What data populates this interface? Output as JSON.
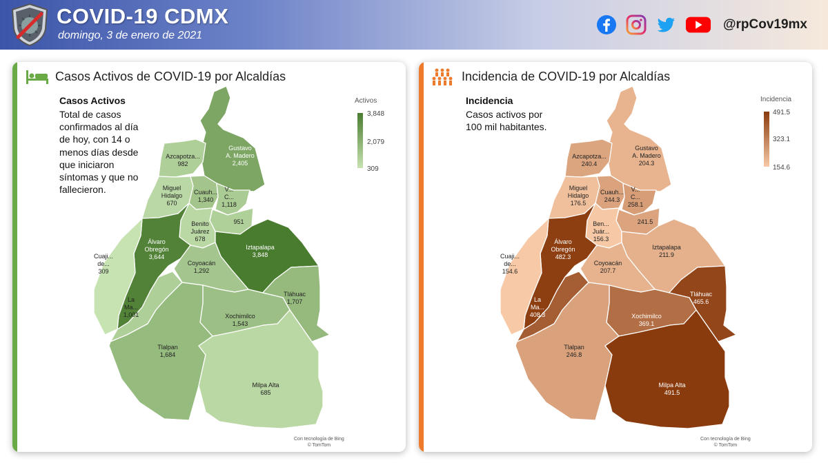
{
  "header": {
    "title": "COVID-19 CDMX",
    "date": "domingo, 3 de enero de 2021",
    "handle": "@rpCov19mx",
    "icons": [
      "facebook-icon",
      "instagram-icon",
      "twitter-icon",
      "youtube-icon"
    ]
  },
  "left_panel": {
    "accent": "#6aaa46",
    "title": "Casos Activos de COVID-19 por Alcaldías",
    "desc_head": "Casos Activos",
    "desc_lines": [
      "Total de casos",
      "confirmados al día",
      "de hoy, con 14 o",
      "menos días desde",
      "que iniciaron",
      "síntomas y que no",
      "fallecieron."
    ],
    "legend": {
      "title": "Activos",
      "max": "3,848",
      "mid": "2,079",
      "min": "309",
      "color_max": "#4a7c2f",
      "color_min": "#c7e3b2"
    },
    "credit": [
      "Con tecnología de Bing",
      "© TomTom"
    ]
  },
  "right_panel": {
    "accent": "#ee7a2e",
    "title": "Incidencia de COVID-19 por Alcaldías",
    "desc_head": "Incidencia",
    "desc_lines": [
      "Casos activos por",
      "100 mil habitantes."
    ],
    "legend": {
      "title": "Incidencia",
      "max": "491.5",
      "mid": "323.1",
      "min": "154.6",
      "color_max": "#8a3b0d",
      "color_min": "#f7c9a6"
    },
    "credit": [
      "Con tecnología de Bing",
      "© TomTom"
    ]
  },
  "map_data": {
    "regions": [
      {
        "key": "gam",
        "label_lines": [
          "Gustavo",
          "A. Madero"
        ],
        "active": "2,405",
        "active_value": 2405,
        "incidence": "204.3",
        "incidence_value": 204.3
      },
      {
        "key": "azc",
        "label_lines": [
          "Azcapotza..."
        ],
        "active": "982",
        "active_value": 982,
        "incidence": "240.4",
        "incidence_value": 240.4
      },
      {
        "key": "mh",
        "label_lines": [
          "Miguel",
          "Hidalgo"
        ],
        "active": "670",
        "active_value": 670,
        "incidence": "176.5",
        "incidence_value": 176.5
      },
      {
        "key": "cuauh",
        "label_lines": [
          "Cuauh..."
        ],
        "active": "1,340",
        "active_value": 1340,
        "incidence": "244.3",
        "incidence_value": 244.3
      },
      {
        "key": "vc",
        "label_lines": [
          "V...",
          "C..."
        ],
        "active": "1,118",
        "active_value": 1118,
        "incidence": "258.1",
        "incidence_value": 258.1
      },
      {
        "key": "izc",
        "label_lines": [],
        "active": "951",
        "active_value": 951,
        "incidence": "241.5",
        "incidence_value": 241.5
      },
      {
        "key": "bj",
        "label_lines": [
          "Benito",
          "Juárez"
        ],
        "right_label_lines": [
          "Ben...",
          "Juár..."
        ],
        "active": "678",
        "active_value": 678,
        "incidence": "156.3",
        "incidence_value": 156.3
      },
      {
        "key": "ao",
        "label_lines": [
          "Álvaro",
          "Obregón"
        ],
        "active": "3,644",
        "active_value": 3644,
        "incidence": "482.3",
        "incidence_value": 482.3
      },
      {
        "key": "izp",
        "label_lines": [
          "Iztapalapa"
        ],
        "active": "3,848",
        "active_value": 3848,
        "incidence": "211.9",
        "incidence_value": 211.9
      },
      {
        "key": "cuaj",
        "label_lines": [
          "Cuaji...",
          "de..."
        ],
        "active": "309",
        "active_value": 309,
        "incidence": "154.6",
        "incidence_value": 154.6
      },
      {
        "key": "coy",
        "label_lines": [
          "Coyoacán"
        ],
        "active": "1,292",
        "active_value": 1292,
        "incidence": "207.7",
        "incidence_value": 207.7
      },
      {
        "key": "mc",
        "label_lines": [
          "La",
          "Ma..."
        ],
        "active": "1,001",
        "active_value": 1001,
        "incidence": "408.3",
        "incidence_value": 408.3
      },
      {
        "key": "tlh",
        "label_lines": [
          "Tláhuac"
        ],
        "active": "1,707",
        "active_value": 1707,
        "incidence": "465.6",
        "incidence_value": 465.6
      },
      {
        "key": "xoc",
        "label_lines": [
          "Xochimilco"
        ],
        "active": "1,543",
        "active_value": 1543,
        "incidence": "369.1",
        "incidence_value": 369.1
      },
      {
        "key": "tlp",
        "label_lines": [
          "Tlalpan"
        ],
        "active": "1,684",
        "active_value": 1684,
        "incidence": "246.8",
        "incidence_value": 246.8
      },
      {
        "key": "ma",
        "label_lines": [
          "Milpa Alta"
        ],
        "active": "685",
        "active_value": 685,
        "incidence": "491.5",
        "incidence_value": 491.5
      }
    ]
  }
}
